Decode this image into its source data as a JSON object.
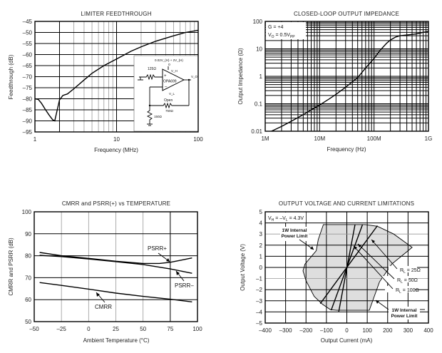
{
  "chart_data": [
    {
      "id": "limiter",
      "type": "line",
      "title": "LIMITER FEEDTHROUGH",
      "xlabel": "Frequency (MHz)",
      "ylabel": "Feedthrough (dB)",
      "xscale": "log",
      "xlim": [
        1,
        100
      ],
      "ylim": [
        -95,
        -45
      ],
      "xticks": [
        {
          "v": 1,
          "label": "1"
        },
        {
          "v": 10,
          "label": "10"
        },
        {
          "v": 100,
          "label": "100"
        }
      ],
      "yticks": [
        {
          "v": -45,
          "label": "–45"
        },
        {
          "v": -50,
          "label": "–50"
        },
        {
          "v": -55,
          "label": "–55"
        },
        {
          "v": -60,
          "label": "–60"
        },
        {
          "v": -65,
          "label": "–65"
        },
        {
          "v": -70,
          "label": "–70"
        },
        {
          "v": -75,
          "label": "–75"
        },
        {
          "v": -80,
          "label": "–80"
        },
        {
          "v": -85,
          "label": "–85"
        },
        {
          "v": -90,
          "label": "–90"
        },
        {
          "v": -95,
          "label": "–95"
        }
      ],
      "grid": true,
      "series": [
        {
          "name": "Feedthrough",
          "x": [
            1,
            1.1,
            1.2,
            1.35,
            1.5,
            1.65,
            1.75,
            1.85,
            2.0,
            2.2,
            2.5,
            3,
            4,
            5,
            7,
            10,
            15,
            20,
            30,
            50,
            70,
            100
          ],
          "y": [
            -80,
            -80.3,
            -82,
            -85,
            -87.5,
            -89.5,
            -90,
            -86,
            -80.5,
            -78.5,
            -77.8,
            -75.5,
            -71.5,
            -68.5,
            -65,
            -62,
            -58.5,
            -56.5,
            -54,
            -51.5,
            -50,
            -49
          ]
        }
      ],
      "inset": {
        "label_supply_top": "0.02V_(H) + 2V_(H)",
        "r_in": "125Ω",
        "vh": "V_H",
        "part": "OPA699",
        "vo": "V_O",
        "vl": "V_L",
        "vl_state": "Open",
        "r_f": "750Ω",
        "r_g": "150Ω"
      }
    },
    {
      "id": "impedance",
      "type": "line",
      "title": "CLOSED-LOOP OUTPUT IMPEDANCE",
      "xlabel": "Frequency (Hz)",
      "ylabel": "Output Impedance (Ω)",
      "xscale": "log",
      "yscale": "log",
      "xlim": [
        1000000,
        1000000000
      ],
      "ylim": [
        0.01,
        100
      ],
      "xticks": [
        {
          "v": 1000000,
          "label": "1M"
        },
        {
          "v": 10000000,
          "label": "10M"
        },
        {
          "v": 100000000,
          "label": "100M"
        },
        {
          "v": 1000000000,
          "label": "1G"
        }
      ],
      "yticks": [
        {
          "v": 0.01,
          "label": "0.01"
        },
        {
          "v": 0.1,
          "label": "0.1"
        },
        {
          "v": 1,
          "label": "1"
        },
        {
          "v": 10,
          "label": "10"
        },
        {
          "v": 100,
          "label": "100"
        }
      ],
      "grid": true,
      "legend_text": [
        "G = +4",
        "V_O = 0.5V_PP"
      ],
      "legend_position": "top-left",
      "series": [
        {
          "name": "Zout",
          "x": [
            1300000,
            2000000,
            3000000,
            5000000,
            7000000,
            10000000,
            15000000,
            20000000,
            30000000,
            50000000,
            70000000,
            100000000,
            130000000,
            170000000,
            200000000,
            250000000,
            300000000,
            400000000,
            600000000,
            800000000,
            1000000000
          ],
          "y": [
            0.01,
            0.015,
            0.023,
            0.04,
            0.06,
            0.09,
            0.15,
            0.22,
            0.4,
            0.9,
            2.0,
            4.5,
            9,
            16,
            21,
            27,
            30,
            32,
            35,
            40,
            43
          ]
        }
      ]
    },
    {
      "id": "cmrr",
      "type": "line",
      "title": "CMRR and PSRR(+) vs TEMPERATURE",
      "xlabel": "Ambient Temperature (°C)",
      "ylabel": "CMRR and PSRR (dB)",
      "xlim": [
        -50,
        100
      ],
      "ylim": [
        50,
        100
      ],
      "xticks": [
        {
          "v": -50,
          "label": "–50"
        },
        {
          "v": -25,
          "label": "–25"
        },
        {
          "v": 0,
          "label": "0"
        },
        {
          "v": 25,
          "label": "25"
        },
        {
          "v": 50,
          "label": "50"
        },
        {
          "v": 75,
          "label": "75"
        },
        {
          "v": 100,
          "label": "100"
        }
      ],
      "yticks": [
        {
          "v": 50,
          "label": "50"
        },
        {
          "v": 60,
          "label": "60"
        },
        {
          "v": 70,
          "label": "70"
        },
        {
          "v": 80,
          "label": "80"
        },
        {
          "v": 90,
          "label": "90"
        },
        {
          "v": 100,
          "label": "100"
        }
      ],
      "grid": true,
      "series": [
        {
          "name": "PSRR+",
          "x": [
            -45,
            -25,
            0,
            25,
            50,
            65,
            75,
            85,
            95
          ],
          "y": [
            81.5,
            80,
            78.8,
            77.5,
            76.5,
            76.5,
            77,
            78,
            79
          ]
        },
        {
          "name": "PSRR–",
          "x": [
            -45,
            -25,
            0,
            25,
            50,
            75,
            95
          ],
          "y": [
            80.2,
            79.6,
            78.5,
            77.3,
            76,
            74,
            72
          ]
        },
        {
          "name": "CMRR",
          "x": [
            -45,
            -25,
            0,
            25,
            50,
            75,
            95
          ],
          "y": [
            67.8,
            66.5,
            64.8,
            63,
            61.5,
            60.2,
            59
          ]
        }
      ],
      "annotations": [
        {
          "text": "PSRR+",
          "at_x": 75,
          "at_y": 77
        },
        {
          "text": "PSRR–",
          "at_x": 80,
          "at_y": 73.5
        },
        {
          "text": "CMRR",
          "at_x": 7,
          "at_y": 64.5
        }
      ]
    },
    {
      "id": "limits",
      "type": "area",
      "title": "OUTPUT VOLTAGE AND CURRENT LIMITATIONS",
      "xlabel": "Output Current (mA)",
      "ylabel": "Output Voltage (V)",
      "xlim": [
        -400,
        400
      ],
      "ylim": [
        -5,
        5
      ],
      "xticks": [
        {
          "v": -400,
          "label": "–400"
        },
        {
          "v": -300,
          "label": "–300"
        },
        {
          "v": -200,
          "label": "–200"
        },
        {
          "v": -100,
          "label": "–100"
        },
        {
          "v": 0,
          "label": "0"
        },
        {
          "v": 100,
          "label": "100"
        },
        {
          "v": 200,
          "label": "200"
        },
        {
          "v": 300,
          "label": "300"
        },
        {
          "v": 400,
          "label": "400"
        }
      ],
      "yticks": [
        {
          "v": -5,
          "label": "–5"
        },
        {
          "v": -4,
          "label": "–4"
        },
        {
          "v": -3,
          "label": "–3"
        },
        {
          "v": -2,
          "label": "–2"
        },
        {
          "v": -1,
          "label": "–1"
        },
        {
          "v": 0,
          "label": "0"
        },
        {
          "v": 1,
          "label": "1"
        },
        {
          "v": 2,
          "label": "2"
        },
        {
          "v": 3,
          "label": "3"
        },
        {
          "v": 4,
          "label": "4"
        },
        {
          "v": 5,
          "label": "5"
        }
      ],
      "grid": true,
      "legend_text": "V_H = –V_L = 4.3V",
      "region": {
        "name": "Safe operating area",
        "x": [
          -115,
          90,
          150,
          230,
          320,
          300,
          220,
          160,
          110,
          -50,
          -80,
          -120,
          -160,
          -200,
          -215,
          -205,
          -150,
          -140,
          -115
        ],
        "y": [
          3.85,
          3.85,
          3.7,
          3.0,
          1.8,
          1.5,
          0.3,
          -1.3,
          -3.85,
          -3.85,
          -3.8,
          -3.3,
          -2.6,
          -1.2,
          -0.3,
          0.3,
          1.5,
          2.5,
          3.85
        ],
        "fill": "#dedede"
      },
      "load_lines": [
        {
          "name": "RL = 25Ω",
          "x": [
            -130,
            150
          ],
          "y": [
            -3.25,
            3.75
          ]
        },
        {
          "name": "RL = 50Ω",
          "x": [
            -77,
            77
          ],
          "y": [
            -3.85,
            3.85
          ]
        },
        {
          "name": "RL = 100Ω",
          "x": [
            -40,
            40
          ],
          "y": [
            -4.0,
            3.85
          ]
        }
      ],
      "annotations": [
        {
          "text": "RL = 25Ω"
        },
        {
          "text": "RL = 50Ω"
        },
        {
          "text": "RL = 100Ω"
        },
        {
          "text": "1W Internal Power Limit",
          "position": "upper-left"
        },
        {
          "text": "1W Internal Power Limit",
          "position": "lower-right"
        }
      ]
    }
  ]
}
